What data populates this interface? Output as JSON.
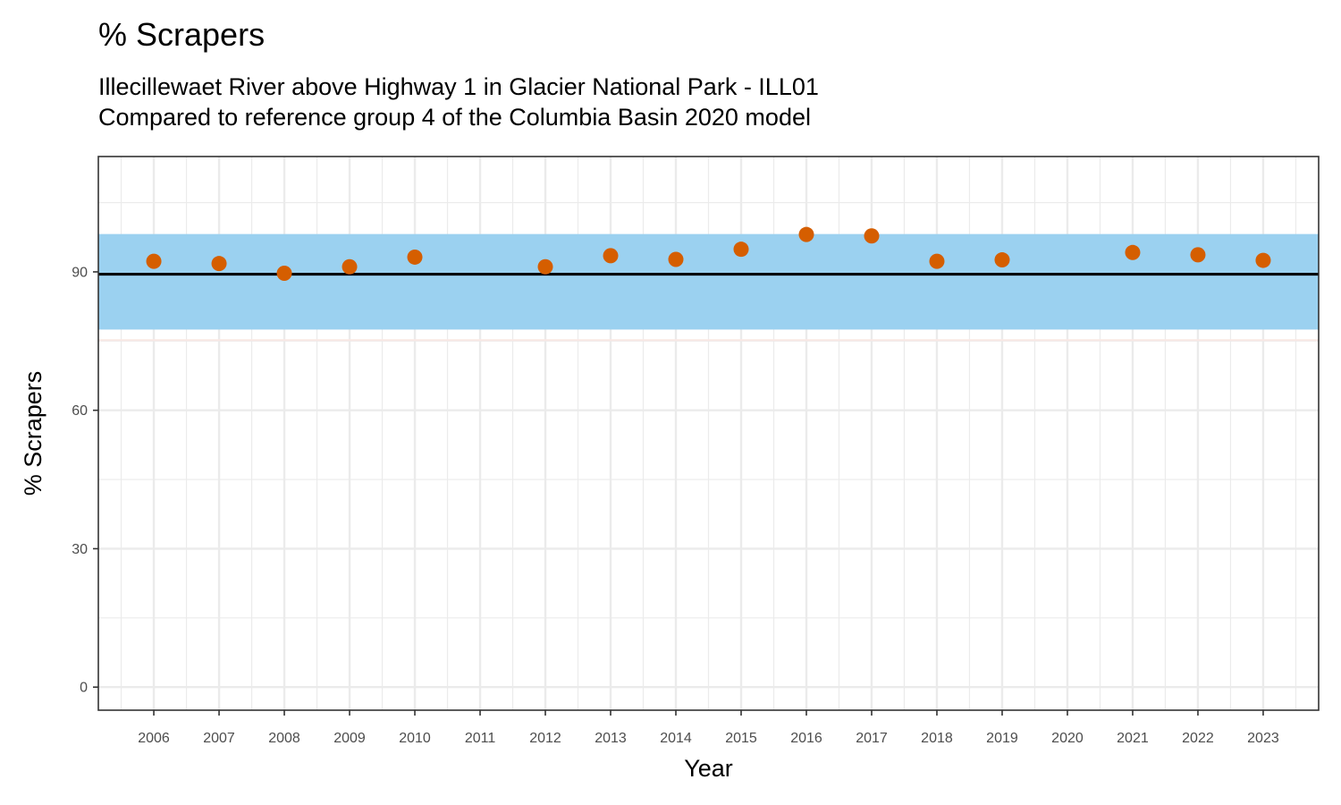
{
  "chart_data": {
    "type": "scatter",
    "title": "% Scrapers",
    "subtitle_lines": [
      "Illecillewaet River above Highway 1 in Glacier National Park - ILL01",
      "Compared to reference group 4 of the Columbia Basin 2020 model"
    ],
    "xlabel": "Year",
    "ylabel": "% Scrapers",
    "x_ticks": [
      "2006",
      "2007",
      "2008",
      "2009",
      "2010",
      "2011",
      "2012",
      "2013",
      "2014",
      "2015",
      "2016",
      "2017",
      "2018",
      "2019",
      "2020",
      "2021",
      "2022",
      "2023"
    ],
    "y_ticks": [
      0,
      30,
      60,
      90
    ],
    "xlim": [
      2005.15,
      2023.85
    ],
    "ylim": [
      -5,
      115
    ],
    "grid": true,
    "reference_band": {
      "low": 77.5,
      "high": 98.2,
      "color": "#9bd1f0"
    },
    "secondary_band_line": {
      "value": 75.2,
      "color": "#f9e8e4"
    },
    "reference_line": {
      "value": 89.5,
      "color": "#000000"
    },
    "point_color": "#d55e00",
    "points": [
      {
        "x": 2006,
        "y": 92.3
      },
      {
        "x": 2007,
        "y": 91.8
      },
      {
        "x": 2008,
        "y": 89.7
      },
      {
        "x": 2009,
        "y": 91.1
      },
      {
        "x": 2010,
        "y": 93.2
      },
      {
        "x": 2012,
        "y": 91.1
      },
      {
        "x": 2013,
        "y": 93.5
      },
      {
        "x": 2014,
        "y": 92.7
      },
      {
        "x": 2015,
        "y": 94.9
      },
      {
        "x": 2016,
        "y": 98.1
      },
      {
        "x": 2017,
        "y": 97.8
      },
      {
        "x": 2018,
        "y": 92.3
      },
      {
        "x": 2019,
        "y": 92.6
      },
      {
        "x": 2021,
        "y": 94.2
      },
      {
        "x": 2022,
        "y": 93.7
      },
      {
        "x": 2023,
        "y": 92.5
      }
    ]
  }
}
